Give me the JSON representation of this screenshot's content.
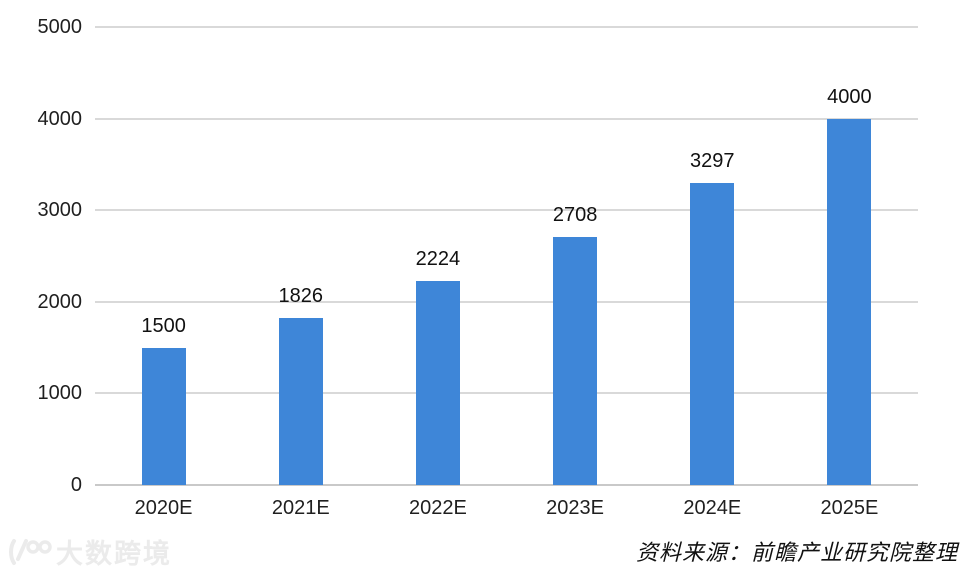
{
  "chart_data": {
    "type": "bar",
    "title": "",
    "categories": [
      "2020E",
      "2021E",
      "2022E",
      "2023E",
      "2024E",
      "2025E"
    ],
    "values": [
      1500,
      1826,
      2224,
      2708,
      3297,
      4000
    ],
    "xlabel": "",
    "ylabel": "",
    "ylim": [
      0,
      5000
    ],
    "yticks": [
      0,
      1000,
      2000,
      3000,
      4000,
      5000
    ],
    "grid": true,
    "legend_position": "none",
    "bar_color": "#3E86D8"
  },
  "colors": {
    "bar": "#3E86D8",
    "gridline": "#d9d9d9",
    "axis_line": "#c9c9c9",
    "text": "#1f1f1f",
    "watermark": "#ebebeb"
  },
  "source_note": "资料来源：前瞻产业研究院整理",
  "watermark": {
    "logo": "dashu-logo",
    "text": "大数跨境"
  }
}
